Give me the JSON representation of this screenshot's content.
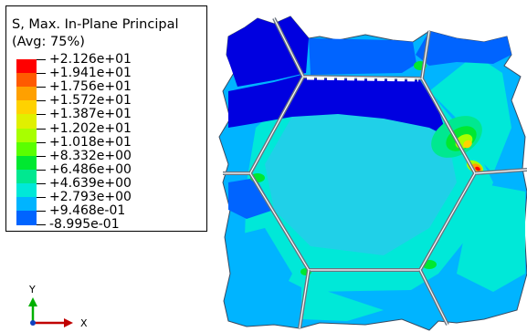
{
  "legend": {
    "title": "S, Max. In-Plane Principal",
    "subtitle": "(Avg: 75%)",
    "levels": [
      {
        "label": "+2.126e+01",
        "color": "#ff0000"
      },
      {
        "label": "+1.941e+01",
        "color": "#ff5a00"
      },
      {
        "label": "+1.756e+01",
        "color": "#ffa000"
      },
      {
        "label": "+1.572e+01",
        "color": "#ffd200"
      },
      {
        "label": "+1.387e+01",
        "color": "#e0f000"
      },
      {
        "label": "+1.202e+01",
        "color": "#a8ff00"
      },
      {
        "label": "+1.018e+01",
        "color": "#5aff00"
      },
      {
        "label": "+8.332e+00",
        "color": "#00e830"
      },
      {
        "label": "+6.486e+00",
        "color": "#00e890"
      },
      {
        "label": "+4.639e+00",
        "color": "#00e8d8"
      },
      {
        "label": "+2.793e+00",
        "color": "#00b4ff"
      },
      {
        "label": "+9.468e-01",
        "color": "#0064ff"
      },
      {
        "label": "-8.995e-01",
        "color": "#0000e0"
      }
    ]
  },
  "triad": {
    "y_label": "Y",
    "x_label": "X",
    "y_color": "#00b000",
    "x_color": "#c00000"
  },
  "colors": {
    "frame": "#6a7480",
    "field_base": "#10c8e0"
  }
}
